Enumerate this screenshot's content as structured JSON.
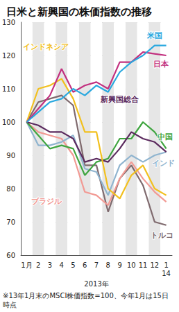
{
  "chart_data": {
    "type": "line",
    "title": "日米と新興国の株価指数の推移",
    "x_label": "2013年",
    "note": "※13年1月末のMSCI株価指数=100、今年1月は15日時点",
    "categories": [
      "1月",
      "2",
      "3",
      "4",
      "5",
      "6",
      "7",
      "8",
      "9",
      "10",
      "11",
      "12",
      "1\n14"
    ],
    "ylim": [
      60,
      130
    ],
    "yticks": [
      60,
      70,
      80,
      90,
      100,
      110,
      120,
      130
    ],
    "grid": true,
    "series": [
      {
        "name": "米国",
        "color": "#29a8df",
        "values": [
          100,
          103,
          106,
          107,
          110,
          108,
          111,
          109,
          115,
          118,
          120,
          123,
          123
        ]
      },
      {
        "name": "日本",
        "color": "#c2307f",
        "values": [
          100,
          104,
          108,
          116,
          109,
          111,
          112,
          110,
          118,
          118,
          121,
          120.5,
          120
        ]
      },
      {
        "name": "インドネシア",
        "color": "#f2c01e",
        "values": [
          100,
          110,
          111,
          113,
          107,
          97,
          97,
          80,
          77,
          84,
          87,
          80,
          78
        ]
      },
      {
        "name": "新興国総合",
        "color": "#5b2a5e",
        "values": [
          100,
          99,
          97,
          97,
          95,
          88,
          89,
          88,
          92,
          97,
          95,
          94,
          91
        ]
      },
      {
        "name": "中国",
        "color": "#3fa53f",
        "values": [
          100,
          96,
          92,
          93,
          92,
          84,
          88,
          89,
          95,
          95,
          100,
          97,
          92
        ]
      },
      {
        "name": "インド",
        "color": "#8fb4cf",
        "values": [
          100,
          93,
          93,
          94,
          96,
          86,
          85,
          78,
          87,
          90,
          88,
          90,
          91
        ]
      },
      {
        "name": "ブラジル",
        "color": "#f29a94",
        "values": [
          100,
          97,
          96,
          95,
          90,
          79,
          78,
          75,
          83,
          88,
          83,
          79,
          76
        ]
      },
      {
        "name": "トルコ",
        "color": "#7f6a6e",
        "values": [
          100,
          106,
          107,
          108,
          105,
          87,
          87,
          73,
          83,
          87,
          81,
          70,
          69
        ]
      }
    ]
  }
}
